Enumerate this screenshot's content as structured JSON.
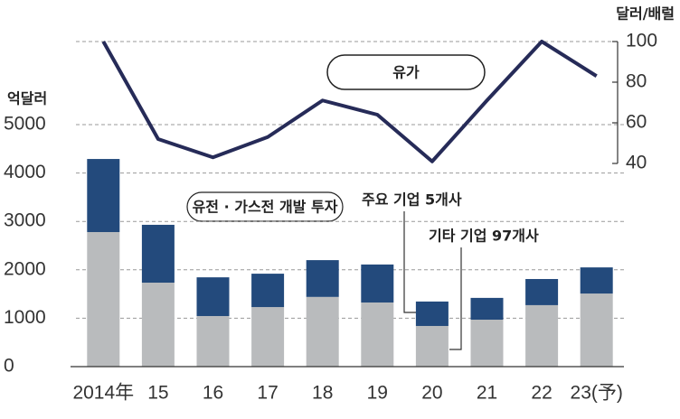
{
  "chart_data": {
    "type": "bar",
    "stacked": true,
    "y_label": "억달러",
    "y2_label": "달러/배럴",
    "annotation": "유전 · 가스전 개발 투자",
    "categories": [
      "2014年",
      "15",
      "16",
      "17",
      "18",
      "19",
      "20",
      "21",
      "22",
      "23(予)"
    ],
    "series": [
      {
        "name": "기타 기업 97개사",
        "color": "#b9bbbd",
        "values": [
          2780,
          1735,
          1045,
          1230,
          1440,
          1325,
          840,
          970,
          1270,
          1510
        ]
      },
      {
        "name": "주요 기업 5개사",
        "color": "#234a7c",
        "values": [
          1510,
          1195,
          800,
          690,
          760,
          785,
          505,
          450,
          540,
          540
        ]
      },
      {
        "name": "유가",
        "type": "line",
        "axis": "y2",
        "color": "#262b58",
        "values": [
          100,
          52,
          43,
          53,
          71,
          64,
          41,
          71,
          100,
          83
        ]
      }
    ],
    "ylim": [
      0,
      5000
    ],
    "yticks": [
      0,
      1000,
      2000,
      3000,
      4000,
      5000
    ],
    "y2lim": [
      40,
      100
    ],
    "y2ticks": [
      40,
      60,
      80,
      100
    ],
    "grid": true
  }
}
